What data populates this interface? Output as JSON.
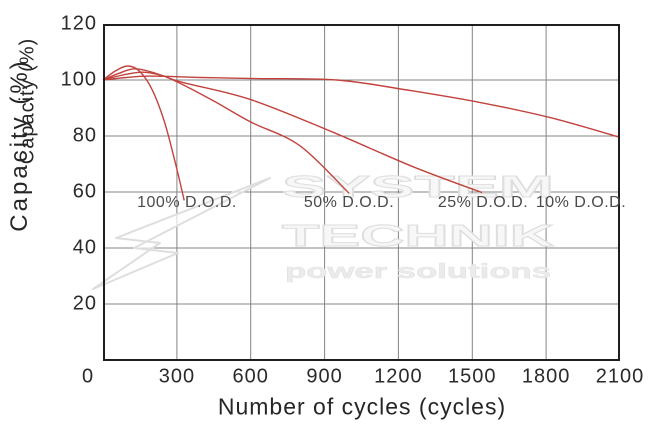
{
  "watermark": {
    "line1": "SYSTEM",
    "line2": "TECHNIK",
    "line3": "power solutions"
  },
  "chart_data": {
    "type": "line",
    "title": "",
    "xlabel": "Number of cycles (cycles)",
    "ylabel": "Capacity (%)",
    "xlim": [
      0,
      2100
    ],
    "ylim": [
      0,
      120
    ],
    "x_ticks": [
      0,
      300,
      600,
      900,
      1200,
      1500,
      1800,
      2100
    ],
    "y_ticks": [
      20,
      40,
      60,
      80,
      100,
      120
    ],
    "grid": true,
    "grid_color": "#848484",
    "frame_color": "#1e1e1e",
    "line_color": "#c2423d",
    "legend_position": "inline-labels",
    "series": [
      {
        "name": "100% D.O.D.",
        "points": [
          [
            0,
            100
          ],
          [
            50,
            103.2
          ],
          [
            100,
            105
          ],
          [
            150,
            103
          ],
          [
            200,
            96.5
          ],
          [
            250,
            85
          ],
          [
            295,
            70
          ],
          [
            330,
            57
          ]
        ]
      },
      {
        "name": "50% D.O.D.",
        "points": [
          [
            0,
            100
          ],
          [
            65,
            102.4
          ],
          [
            130,
            104
          ],
          [
            210,
            102.5
          ],
          [
            300,
            99.4
          ],
          [
            450,
            92.5
          ],
          [
            600,
            85
          ],
          [
            800,
            76.5
          ],
          [
            1000,
            59.5
          ]
        ]
      },
      {
        "name": "25% D.O.D.",
        "points": [
          [
            0,
            100
          ],
          [
            80,
            101.8
          ],
          [
            160,
            102.8
          ],
          [
            240,
            101.6
          ],
          [
            320,
            99.2
          ],
          [
            600,
            93
          ],
          [
            930,
            81.5
          ],
          [
            1260,
            69
          ],
          [
            1540,
            59.8
          ]
        ]
      },
      {
        "name": "10% D.O.D.",
        "points": [
          [
            0,
            100
          ],
          [
            95,
            100.9
          ],
          [
            190,
            101.4
          ],
          [
            400,
            100.9
          ],
          [
            620,
            100.5
          ],
          [
            950,
            100
          ],
          [
            1250,
            96.2
          ],
          [
            1530,
            92
          ],
          [
            1820,
            86.5
          ],
          [
            2100,
            79.5
          ]
        ]
      }
    ]
  }
}
